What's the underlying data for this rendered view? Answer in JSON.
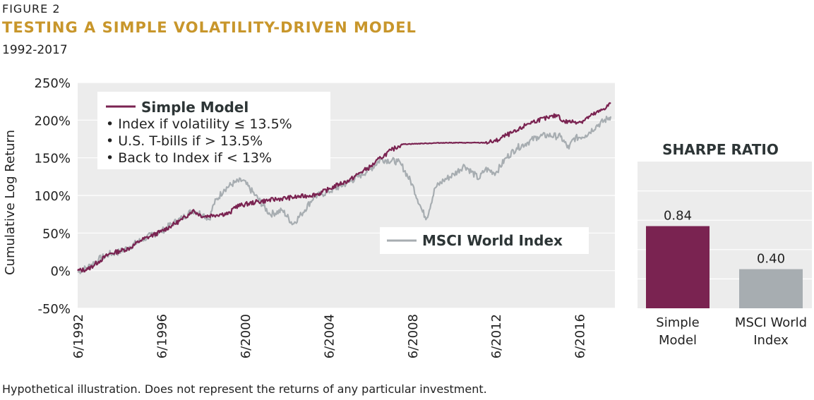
{
  "figure": {
    "label": "FIGURE 2",
    "title": "TESTING A SIMPLE VOLATILITY-DRIVEN MODEL",
    "subtitle": "1992-2017",
    "footnote": "Hypothetical illustration. Does not represent the returns of any particular investment."
  },
  "colors": {
    "simple_model": "#7a2351",
    "msci": "#a7adb1",
    "plot_bg": "#ececec",
    "title_gold": "#c8962b"
  },
  "chart_data": [
    {
      "type": "line",
      "ylabel": "Cumulative Log Return",
      "xlabel": "",
      "xlim": [
        1992.5,
        2018.2
      ],
      "ylim": [
        -50,
        250
      ],
      "yticks": [
        -50,
        0,
        50,
        100,
        150,
        200,
        250
      ],
      "ytick_labels": [
        "-50%",
        "0%",
        "50%",
        "100%",
        "150%",
        "200%",
        "250%"
      ],
      "xticks": [
        1992.5,
        1996.5,
        2000.5,
        2004.5,
        2008.5,
        2012.5,
        2016.5
      ],
      "xtick_labels": [
        "6/1992",
        "6/1996",
        "6/2000",
        "6/2004",
        "6/2008",
        "6/2012",
        "6/2016"
      ],
      "grid": "horizontal",
      "legend": {
        "simple_title": "Simple Model",
        "simple_bullets": [
          "• Index if volatility ≤ 13.5%",
          "• U.S. T-bills if > 13.5%",
          "• Back to Index if < 13%"
        ],
        "msci_title": "MSCI World Index"
      },
      "series": [
        {
          "name": "Simple Model",
          "x": [
            1992.5,
            1993.0,
            1993.5,
            1994.0,
            1994.5,
            1995.0,
            1995.5,
            1996.0,
            1996.5,
            1997.0,
            1997.5,
            1997.8,
            1998.0,
            1998.5,
            1999.0,
            1999.3,
            1999.8,
            2000.0,
            2001.0,
            2002.0,
            2003.0,
            2003.6,
            2004.0,
            2004.5,
            2005.0,
            2005.5,
            2006.0,
            2006.5,
            2007.0,
            2007.5,
            2008.0,
            2009.0,
            2010.0,
            2011.0,
            2012.0,
            2012.5,
            2013.0,
            2013.5,
            2014.0,
            2014.5,
            2015.0,
            2015.5,
            2015.7,
            2016.0,
            2016.6,
            2017.0,
            2017.5,
            2018.0
          ],
          "values": [
            0,
            2,
            12,
            22,
            26,
            30,
            40,
            46,
            52,
            60,
            68,
            75,
            80,
            72,
            74,
            75,
            76,
            85,
            91,
            95,
            98,
            100,
            102,
            108,
            115,
            120,
            130,
            138,
            150,
            160,
            168,
            169,
            170,
            170,
            170,
            172,
            180,
            185,
            195,
            200,
            203,
            207,
            198,
            198,
            198,
            205,
            212,
            222
          ]
        },
        {
          "name": "MSCI World Index",
          "x": [
            1992.5,
            1993.0,
            1993.5,
            1994.0,
            1994.5,
            1995.0,
            1995.5,
            1996.0,
            1996.5,
            1997.0,
            1997.5,
            1998.0,
            1998.5,
            1998.8,
            1999.0,
            1999.5,
            2000.0,
            2000.4,
            2001.0,
            2001.7,
            2002.3,
            2002.8,
            2003.2,
            2003.8,
            2004.5,
            2005.5,
            2006.5,
            2007.0,
            2007.8,
            2008.0,
            2008.5,
            2009.0,
            2009.2,
            2009.6,
            2010.0,
            2010.5,
            2011.0,
            2011.7,
            2012.0,
            2012.5,
            2013.0,
            2013.5,
            2014.0,
            2014.5,
            2015.0,
            2015.6,
            2016.0,
            2016.2,
            2016.8,
            2017.3,
            2018.0
          ],
          "values": [
            -2,
            5,
            15,
            22,
            25,
            32,
            40,
            47,
            52,
            62,
            70,
            80,
            75,
            68,
            88,
            108,
            117,
            120,
            100,
            75,
            80,
            62,
            75,
            98,
            105,
            118,
            135,
            148,
            145,
            140,
            115,
            78,
            70,
            110,
            120,
            128,
            140,
            122,
            135,
            130,
            150,
            163,
            170,
            178,
            180,
            178,
            162,
            175,
            180,
            192,
            205
          ]
        }
      ]
    },
    {
      "type": "bar",
      "title": "SHARPE RATIO",
      "categories": [
        "Simple Model",
        "MSCI World Index"
      ],
      "category_lines": [
        [
          "Simple",
          "Model"
        ],
        [
          "MSCI World",
          "Index"
        ]
      ],
      "values": [
        0.84,
        0.4
      ],
      "value_labels": [
        "0.84",
        "0.40"
      ],
      "ylim": [
        0,
        1.5
      ],
      "grid": "horizontal"
    }
  ]
}
